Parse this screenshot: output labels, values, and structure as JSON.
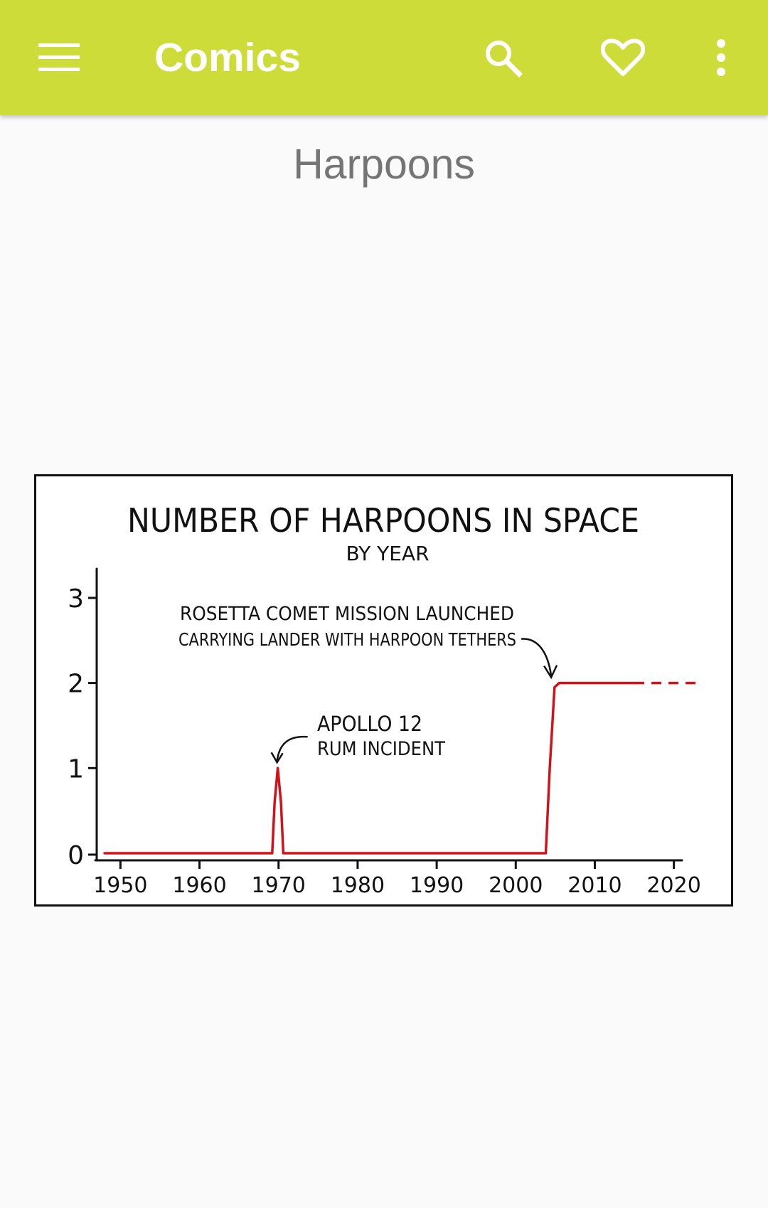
{
  "app_bar": {
    "title": "Comics",
    "background_color": "#cddc39",
    "menu_icon": "menu-icon",
    "search_icon": "search-icon",
    "favorite_icon": "heart-outline-icon",
    "overflow_icon": "more-vert-icon"
  },
  "comic": {
    "title": "Harpoons"
  },
  "chart_data": {
    "type": "line",
    "title": "NUMBER OF HARPOONS IN SPACE",
    "subtitle": "BY YEAR",
    "xlabel": "",
    "ylabel": "",
    "x_ticks": [
      "1950",
      "1960",
      "1970",
      "1980",
      "1990",
      "2000",
      "2010",
      "2020"
    ],
    "y_ticks": [
      "0",
      "1",
      "2",
      "3"
    ],
    "xlim": [
      1947,
      2023
    ],
    "ylim": [
      0,
      3.3
    ],
    "grid": false,
    "line_color": "#d0121b",
    "series": [
      {
        "x": [
          1948,
          1969.2,
          1969.5,
          1969.9,
          1970.3,
          1970.6,
          2003.8,
          2004.3,
          2004.9,
          2005.5,
          2015
        ],
        "y": [
          0,
          0,
          0.6,
          1.0,
          0.6,
          0,
          0,
          1.0,
          1.95,
          2,
          2
        ]
      }
    ],
    "projection": {
      "x": [
        2015,
        2023
      ],
      "y": [
        2,
        2
      ],
      "style": "dashed"
    },
    "annotations": [
      {
        "lines": [
          "ROSETTA COMET MISSION LAUNCHED",
          "CARRYING LANDER WITH HARPOON TETHERS"
        ],
        "points_to": [
          2004.3,
          2
        ]
      },
      {
        "lines": [
          "APOLLO 12",
          "RUM INCIDENT"
        ],
        "points_to": [
          1969.9,
          1
        ]
      }
    ]
  }
}
